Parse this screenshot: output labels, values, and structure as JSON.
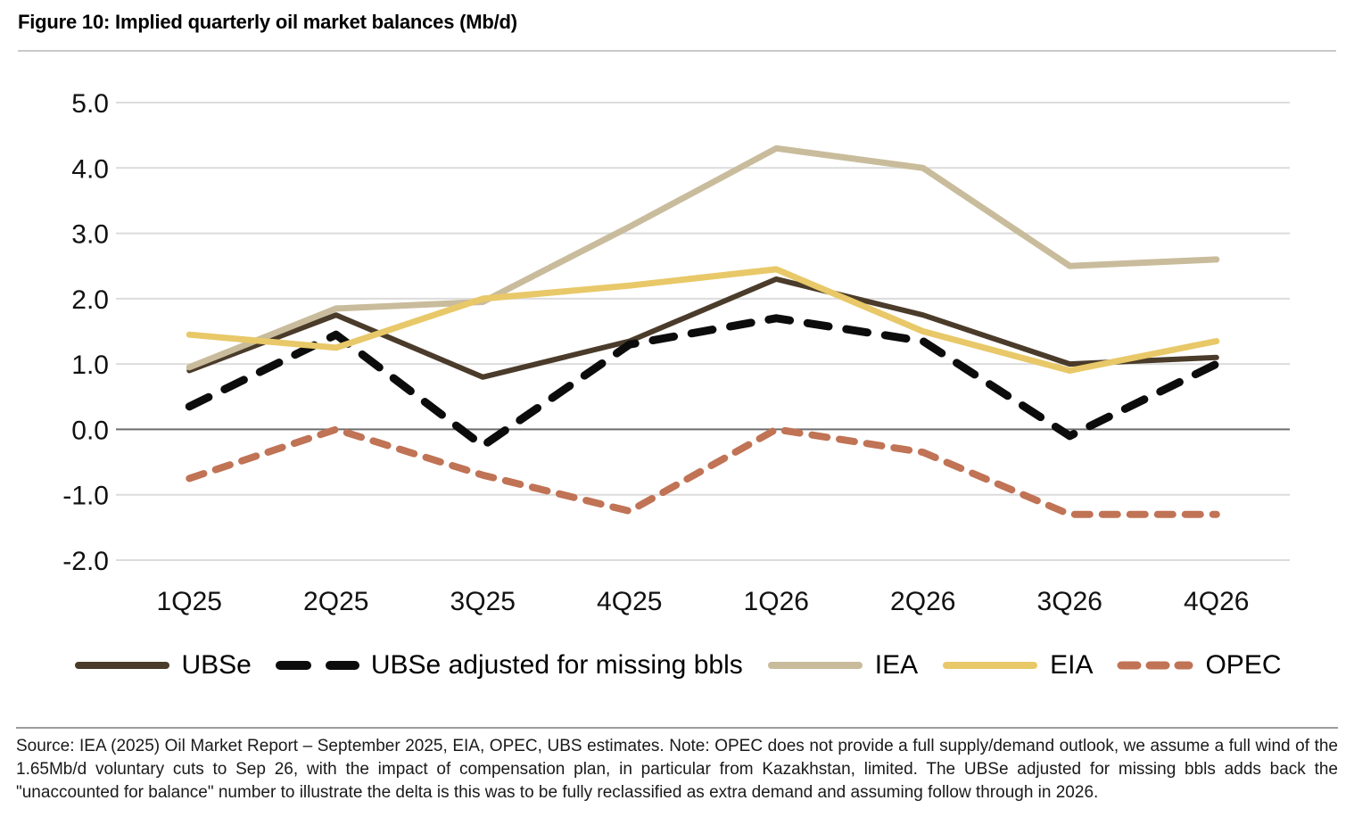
{
  "figure": {
    "title": "Figure 10: Implied quarterly oil market balances (Mb/d)",
    "source_note": "Source: IEA (2025) Oil Market Report – September 2025, EIA, OPEC, UBS estimates. Note: OPEC does not provide a full supply/demand outlook, we assume a full wind of the 1.65Mb/d voluntary cuts to Sep 26, with the impact of compensation plan, in particular from Kazakhstan, limited. The UBSe adjusted for missing bbls adds back the \"unaccounted for balance\" number to illustrate the delta is this was to be fully reclassified as extra demand and assuming follow through in 2026."
  },
  "colors": {
    "ubse": "#4a3b2a",
    "ubse_adjusted": "#0c0c0c",
    "iea": "#c9bc9c",
    "eia": "#e8c868",
    "opec": "#c07355",
    "gridline": "#dcdcdc",
    "zero_line": "#6e6e6e"
  },
  "chart_data": {
    "type": "line",
    "title": "Implied quarterly oil market balances (Mb/d)",
    "categories": [
      "1Q25",
      "2Q25",
      "3Q25",
      "4Q25",
      "1Q26",
      "2Q26",
      "3Q26",
      "4Q26"
    ],
    "series": [
      {
        "name": "UBSe",
        "color": "#4a3b2a",
        "style": "solid",
        "width": 6,
        "values": [
          0.9,
          1.75,
          0.8,
          1.35,
          2.3,
          1.75,
          1.0,
          1.1
        ]
      },
      {
        "name": "UBSe adjusted for missing bbls",
        "color": "#0c0c0c",
        "style": "dashed",
        "dash": "24 20",
        "width": 9,
        "values": [
          0.35,
          1.45,
          -0.25,
          1.3,
          1.7,
          1.35,
          -0.1,
          1.0
        ]
      },
      {
        "name": "IEA",
        "color": "#c9bc9c",
        "style": "solid",
        "width": 7,
        "values": [
          0.95,
          1.85,
          1.95,
          3.1,
          4.3,
          4.0,
          2.5,
          2.6
        ]
      },
      {
        "name": "EIA",
        "color": "#e8c868",
        "style": "solid",
        "width": 7,
        "values": [
          1.45,
          1.25,
          2.0,
          2.2,
          2.45,
          1.5,
          0.9,
          1.35
        ]
      },
      {
        "name": "OPEC",
        "color": "#c07355",
        "style": "dashed",
        "dash": "17 14",
        "width": 8,
        "values": [
          -0.75,
          0.0,
          -0.7,
          -1.25,
          0.0,
          -0.35,
          -1.3,
          -1.3
        ]
      }
    ],
    "xlabel": "",
    "ylabel": "",
    "ylim": [
      -2.0,
      5.0
    ],
    "yticks": [
      5.0,
      4.0,
      3.0,
      2.0,
      1.0,
      0.0,
      -1.0,
      -2.0
    ],
    "grid": "horizontal",
    "legend_position": "bottom"
  }
}
